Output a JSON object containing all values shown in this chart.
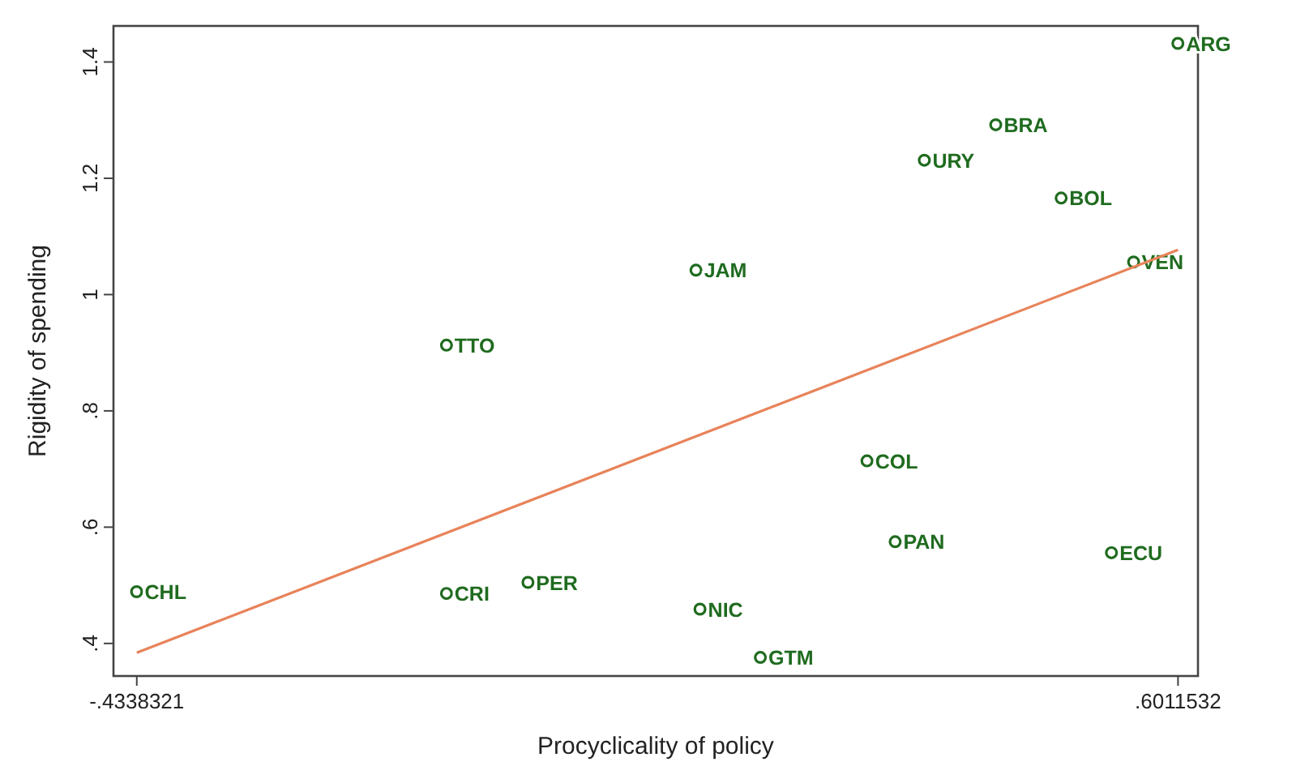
{
  "chart_data": {
    "type": "scatter",
    "xlabel": "Procyclicality of policy",
    "ylabel": "Rigidity of spending",
    "xlim": [
      -0.457,
      0.621
    ],
    "ylim": [
      0.344,
      1.462
    ],
    "xticks": [
      {
        "value": -0.4338321,
        "label": "-.4338321"
      },
      {
        "value": 0.6011532,
        "label": ".6011532"
      }
    ],
    "yticks": [
      {
        "value": 0.4,
        "label": ".4"
      },
      {
        "value": 0.6,
        "label": ".6"
      },
      {
        "value": 0.8,
        "label": ".8"
      },
      1,
      {
        "value": 1.2,
        "label": "1.2"
      },
      {
        "value": 1.4,
        "label": "1.4"
      }
    ],
    "grid": false,
    "marker": "circle",
    "series": [
      {
        "color": "#1f6b1f",
        "x": [
          -0.434,
          -0.126,
          -0.045,
          -0.126,
          0.122,
          0.126,
          0.186,
          0.292,
          0.32,
          0.349,
          0.42,
          0.485,
          0.557,
          0.535,
          0.601
        ],
        "values": [
          0.489,
          0.486,
          0.505,
          0.913,
          1.042,
          0.459,
          0.376,
          0.714,
          0.575,
          1.231,
          1.292,
          1.166,
          1.056,
          0.556,
          1.432
        ],
        "value_labels": [
          "CHL",
          "CRI",
          "PER",
          "TTO",
          "JAM",
          "NIC",
          "GTM",
          "COL",
          "PAN",
          "URY",
          "BRA",
          "BOL",
          "VEN",
          "ECU",
          "ARG"
        ]
      },
      {
        "type": "line",
        "color": "#e8835a",
        "x": [
          -0.4338321,
          0.6011532
        ],
        "values": [
          0.384,
          1.077
        ],
        "marker": "none"
      }
    ]
  }
}
